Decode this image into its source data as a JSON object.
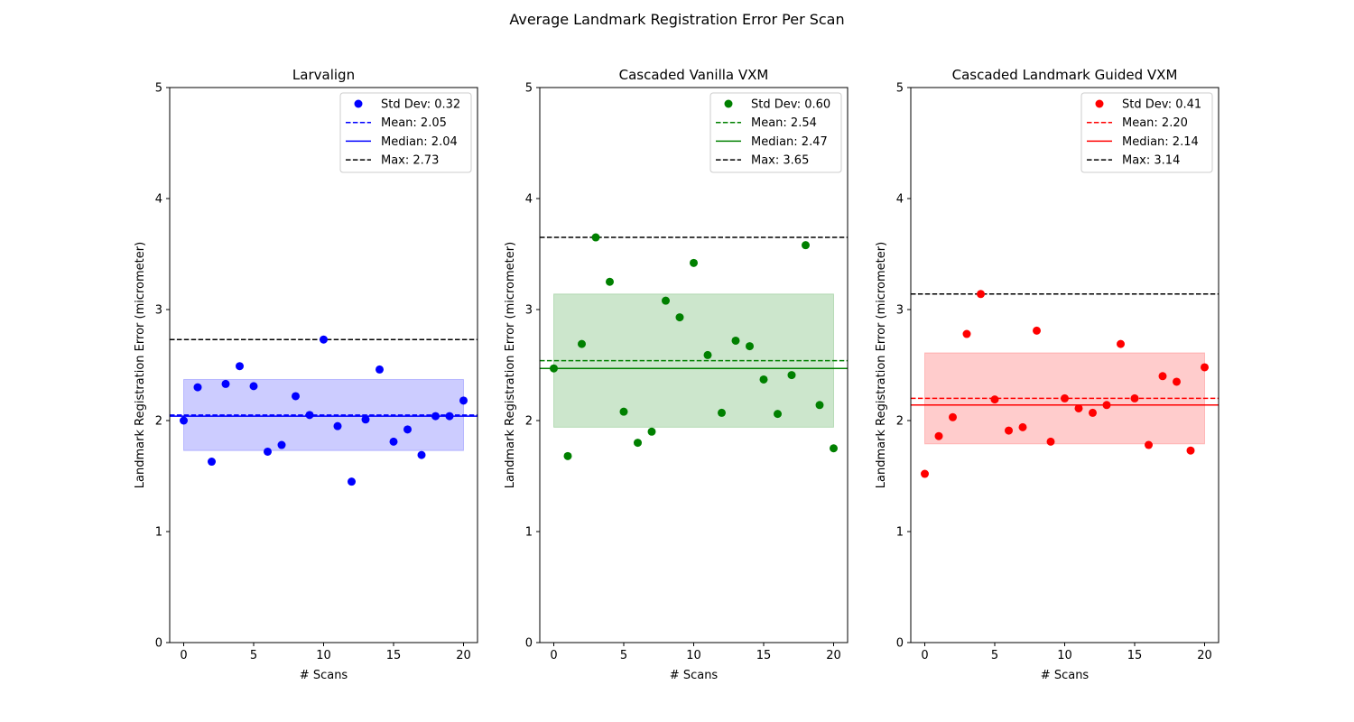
{
  "figure": {
    "title": "Average Landmark Registration Error Per Scan"
  },
  "chart_data": [
    {
      "type": "scatter",
      "title": "Larvalign",
      "xlabel": "# Scans",
      "ylabel": "Landmark Registration Error (micrometer)",
      "xlim": [
        -1,
        21
      ],
      "ylim": [
        0,
        5
      ],
      "xticks": [
        0,
        5,
        10,
        15,
        20
      ],
      "yticks": [
        0,
        1,
        2,
        3,
        4,
        5
      ],
      "color": "#0000ff",
      "band_color": "#0000ff",
      "x": [
        0,
        1,
        2,
        3,
        4,
        5,
        6,
        7,
        8,
        9,
        10,
        11,
        12,
        13,
        14,
        15,
        16,
        17,
        18,
        19,
        20
      ],
      "y": [
        2.0,
        2.3,
        1.63,
        2.33,
        2.49,
        2.31,
        1.72,
        1.78,
        2.22,
        2.05,
        2.73,
        1.95,
        1.45,
        2.01,
        2.46,
        1.81,
        1.92,
        1.69,
        2.04,
        2.04,
        2.18
      ],
      "band": [
        1.73,
        2.37
      ],
      "mean": 2.05,
      "median": 2.04,
      "max": 2.73,
      "grid": false,
      "legend_position": "top-right",
      "legend": [
        "Std Dev: 0.32",
        "Mean: 2.05",
        "Median: 2.04",
        "Max: 2.73"
      ]
    },
    {
      "type": "scatter",
      "title": "Cascaded Vanilla VXM",
      "xlabel": "# Scans",
      "ylabel": "Landmark Registration Error (micrometer)",
      "xlim": [
        -1,
        21
      ],
      "ylim": [
        0,
        5
      ],
      "xticks": [
        0,
        5,
        10,
        15,
        20
      ],
      "yticks": [
        0,
        1,
        2,
        3,
        4,
        5
      ],
      "color": "#008000",
      "band_color": "#008000",
      "x": [
        0,
        1,
        2,
        3,
        4,
        5,
        6,
        7,
        8,
        9,
        10,
        11,
        12,
        13,
        14,
        15,
        16,
        17,
        18,
        19,
        20
      ],
      "y": [
        2.47,
        1.68,
        2.69,
        3.65,
        3.25,
        2.08,
        1.8,
        1.9,
        3.08,
        2.93,
        3.42,
        2.59,
        2.07,
        2.72,
        2.67,
        2.37,
        2.06,
        2.41,
        3.58,
        2.14,
        1.75
      ],
      "band": [
        1.94,
        3.14
      ],
      "mean": 2.54,
      "median": 2.47,
      "max": 3.65,
      "grid": false,
      "legend_position": "top-right",
      "legend": [
        "Std Dev: 0.60",
        "Mean: 2.54",
        "Median: 2.47",
        "Max: 3.65"
      ]
    },
    {
      "type": "scatter",
      "title": "Cascaded Landmark Guided VXM",
      "xlabel": "# Scans",
      "ylabel": "Landmark Registration Error (micrometer)",
      "xlim": [
        -1,
        21
      ],
      "ylim": [
        0,
        5
      ],
      "xticks": [
        0,
        5,
        10,
        15,
        20
      ],
      "yticks": [
        0,
        1,
        2,
        3,
        4,
        5
      ],
      "color": "#ff0000",
      "band_color": "#ff0000",
      "x": [
        0,
        1,
        2,
        3,
        4,
        5,
        6,
        7,
        8,
        9,
        10,
        11,
        12,
        13,
        14,
        15,
        16,
        17,
        18,
        19,
        20
      ],
      "y": [
        1.52,
        1.86,
        2.03,
        2.78,
        3.14,
        2.19,
        1.91,
        1.94,
        2.81,
        1.81,
        2.2,
        2.11,
        2.07,
        2.14,
        2.69,
        2.2,
        1.78,
        2.4,
        2.35,
        1.73,
        2.48
      ],
      "band": [
        1.79,
        2.61
      ],
      "mean": 2.2,
      "median": 2.14,
      "max": 3.14,
      "grid": false,
      "legend_position": "top-right",
      "legend": [
        "Std Dev: 0.41",
        "Mean: 2.20",
        "Median: 2.14",
        "Max: 3.14"
      ]
    }
  ]
}
